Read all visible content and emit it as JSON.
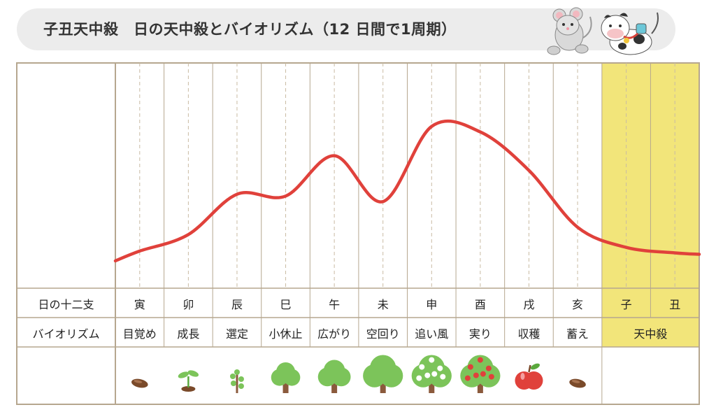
{
  "title": "子丑天中殺　日の天中殺とバイオリズム（12 日間で1周期）",
  "rows": {
    "zodiac_label": "日の十二支",
    "biorhythm_label": "バイオリズム"
  },
  "colors": {
    "line": "#e0413b",
    "highlight": "#f2e57a",
    "border": "#b6a78f",
    "dashed": "#c9bba3"
  },
  "chart_data": {
    "type": "line",
    "categories": [
      "寅",
      "卯",
      "辰",
      "巳",
      "午",
      "未",
      "申",
      "酉",
      "戌",
      "亥",
      "子",
      "丑"
    ],
    "phases": [
      "目覚め",
      "成長",
      "選定",
      "小休止",
      "広がり",
      "空回り",
      "追い風",
      "実り",
      "収穫",
      "蓄え",
      "天中殺",
      "天中殺"
    ],
    "icons": [
      "seed-icon",
      "sprout-icon",
      "sapling-icon",
      "small-tree-icon",
      "tree-icon",
      "big-tree-icon",
      "flowering-tree-icon",
      "fruit-tree-icon",
      "apple-icon",
      "seed-icon",
      "",
      ""
    ],
    "series": [
      {
        "values": [
          5,
          14,
          36,
          35,
          57,
          32,
          73,
          70,
          49,
          18,
          7,
          4
        ]
      }
    ],
    "highlight_label": "天中殺",
    "highlight_categories": [
      "子",
      "丑"
    ],
    "ylim": [
      0,
      100
    ]
  }
}
